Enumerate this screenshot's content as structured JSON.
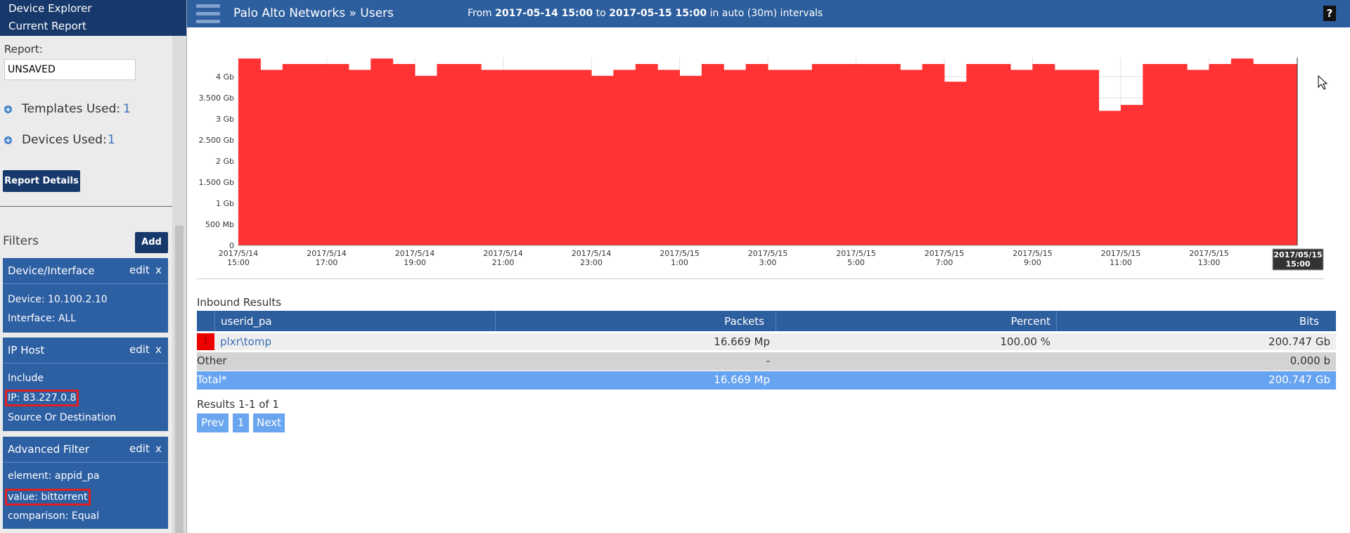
{
  "sidebar": {
    "menu": [
      "Device Explorer",
      "Current Report"
    ],
    "report_label": "Report:",
    "report_value": "UNSAVED",
    "templates": {
      "label": "Templates Used:",
      "count": 1
    },
    "devices": {
      "label": "Devices Used:",
      "count": 1
    },
    "details_button": "Report Details",
    "filters_title": "Filters",
    "add_button": "Add",
    "filters": [
      {
        "title": "Device/Interface",
        "edit": "edit",
        "remove": "x",
        "lines": [
          "Device: 10.100.2.10",
          "Interface: ALL"
        ]
      },
      {
        "title": "IP Host",
        "edit": "edit",
        "remove": "x",
        "lines": [
          "Include",
          "IP: 83.227.0.8",
          "Source Or Destination"
        ],
        "highlight": 1
      },
      {
        "title": "Advanced Filter",
        "edit": "edit",
        "remove": "x",
        "lines": [
          "element: appid_pa",
          "value: bittorrent",
          "comparison: Equal"
        ],
        "highlight": 1
      }
    ]
  },
  "header": {
    "title": "Palo Alto Networks » Users",
    "from": "From",
    "start": "2017-05-14 15:00",
    "to": "to",
    "end": "2017-05-15 15:00",
    "suffix": "in auto (30m) intervals",
    "help": "?"
  },
  "chart_data": {
    "type": "step-area",
    "color": "#ff3333",
    "grid": true,
    "x": [
      "2017/5/14 15:00",
      "2017/5/14 15:30",
      "2017/5/14 16:00",
      "2017/5/14 16:30",
      "2017/5/14 17:00",
      "2017/5/14 17:30",
      "2017/5/14 18:00",
      "2017/5/14 18:30",
      "2017/5/14 19:00",
      "2017/5/14 19:30",
      "2017/5/14 20:00",
      "2017/5/14 20:30",
      "2017/5/14 21:00",
      "2017/5/14 21:30",
      "2017/5/14 22:00",
      "2017/5/14 22:30",
      "2017/5/14 23:00",
      "2017/5/14 23:30",
      "2017/5/15 0:00",
      "2017/5/15 0:30",
      "2017/5/15 1:00",
      "2017/5/15 1:30",
      "2017/5/15 2:00",
      "2017/5/15 2:30",
      "2017/5/15 3:00",
      "2017/5/15 3:30",
      "2017/5/15 4:00",
      "2017/5/15 4:30",
      "2017/5/15 5:00",
      "2017/5/15 5:30",
      "2017/5/15 6:00",
      "2017/5/15 6:30",
      "2017/5/15 7:00",
      "2017/5/15 7:30",
      "2017/5/15 8:00",
      "2017/5/15 8:30",
      "2017/5/15 9:00",
      "2017/5/15 9:30",
      "2017/5/15 10:00",
      "2017/5/15 10:30",
      "2017/5/15 11:00",
      "2017/5/15 11:30",
      "2017/5/15 12:00",
      "2017/5/15 12:30",
      "2017/5/15 13:00",
      "2017/5/15 13:30",
      "2017/5/15 14:00",
      "2017/5/15 14:30"
    ],
    "values": [
      4.43,
      4.16,
      4.3,
      4.3,
      4.3,
      4.16,
      4.43,
      4.3,
      4.02,
      4.3,
      4.3,
      4.16,
      4.16,
      4.16,
      4.16,
      4.16,
      4.02,
      4.16,
      4.3,
      4.16,
      4.02,
      4.3,
      4.16,
      4.3,
      4.16,
      4.16,
      4.3,
      4.3,
      4.3,
      4.3,
      4.16,
      4.3,
      3.88,
      4.3,
      4.3,
      4.16,
      4.3,
      4.16,
      4.16,
      3.19,
      3.33,
      4.3,
      4.3,
      4.16,
      4.3,
      4.43,
      4.3,
      4.3
    ],
    "ylim": [
      0,
      4.45
    ],
    "yticks": [
      0,
      {
        "value": 0.5,
        "label": "500 Mb"
      },
      {
        "value": 1,
        "label": "1 Gb"
      },
      {
        "value": 1.5,
        "label": "1.500 Gb"
      },
      {
        "value": 2,
        "label": "2 Gb"
      },
      {
        "value": 2.5,
        "label": "2.500 Gb"
      },
      {
        "value": 3,
        "label": "3 Gb"
      },
      {
        "value": 3.5,
        "label": "3.500 Gb"
      },
      {
        "value": 4,
        "label": "4 Gb"
      }
    ],
    "xticks": [
      "2017/5/14 15:00",
      "2017/5/14 17:00",
      "2017/5/14 19:00",
      "2017/5/14 21:00",
      "2017/5/14 23:00",
      "2017/5/15 1:00",
      "2017/5/15 3:00",
      "2017/5/15 5:00",
      "2017/5/15 7:00",
      "2017/5/15 9:00",
      "2017/5/15 11:00",
      "2017/5/15 13:00"
    ],
    "cursor_label": "2017/05/15 15:00"
  },
  "table": {
    "caption": "Inbound Results",
    "columns": [
      "userid_pa",
      "Packets",
      "Percent",
      "Bits"
    ],
    "rows": [
      [
        "1",
        "plxr\\tomp",
        "16.669 Mp",
        "100.00 %",
        "200.747 Gb"
      ]
    ],
    "other": [
      "Other",
      "-",
      "0.000 b"
    ],
    "total": [
      "Total*",
      "16.669 Mp",
      "200.747 Gb"
    ]
  },
  "pagination": {
    "summary": "Results 1-1 of 1",
    "prev": "Prev",
    "page": "1",
    "next": "Next"
  }
}
